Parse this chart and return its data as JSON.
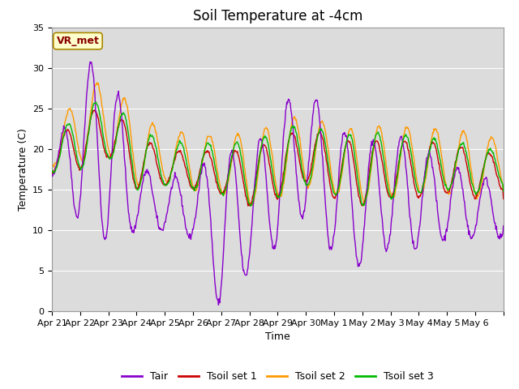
{
  "title": "Soil Temperature at -4cm",
  "xlabel": "Time",
  "ylabel": "Temperature (C)",
  "ylim": [
    0,
    35
  ],
  "n_days": 16,
  "background_color": "#ffffff",
  "plot_bg_color": "#dcdcdc",
  "grid_color": "#ffffff",
  "line_colors": {
    "Tair": "#8800cc",
    "Tsoil_set1": "#cc0000",
    "Tsoil_set2": "#ff9900",
    "Tsoil_set3": "#00bb00"
  },
  "line_width": 1.0,
  "annotation_text": "VR_met",
  "annotation_box_color": "#ffffcc",
  "annotation_border_color": "#aa8800",
  "tick_labels": [
    "Apr 21",
    "Apr 22",
    "Apr 23",
    "Apr 24",
    "Apr 25",
    "Apr 26",
    "Apr 27",
    "Apr 28",
    "Apr 29",
    "Apr 30",
    "May 1",
    "May 2",
    "May 3",
    "May 4",
    "May 5",
    "May 6"
  ],
  "yticks": [
    0,
    5,
    10,
    15,
    20,
    25,
    30,
    35
  ],
  "legend_labels": [
    "Tair",
    "Tsoil set 1",
    "Tsoil set 2",
    "Tsoil set 3"
  ],
  "title_fontsize": 12,
  "axis_label_fontsize": 9,
  "tick_fontsize": 8,
  "legend_fontsize": 9,
  "tair_base": [
    17.0,
    20.5,
    20.0,
    14.0,
    13.0,
    13.0,
    10.0,
    12.0,
    16.5,
    20.0,
    15.0,
    13.0,
    15.0,
    14.0,
    13.5,
    13.0,
    12.0
  ],
  "tair_amp": [
    0.5,
    9.5,
    11.5,
    4.0,
    3.0,
    4.0,
    10.0,
    7.0,
    8.5,
    8.0,
    8.0,
    7.5,
    7.0,
    6.5,
    4.5,
    4.0,
    3.0
  ],
  "ts1_base": [
    18.5,
    21.0,
    22.0,
    18.5,
    17.5,
    17.5,
    17.0,
    16.5,
    17.5,
    19.5,
    17.5,
    17.0,
    17.5,
    17.5,
    17.5,
    17.0,
    17.0
  ],
  "ts1_amp": [
    1.5,
    3.5,
    3.0,
    3.5,
    2.0,
    2.5,
    2.5,
    3.5,
    3.5,
    3.5,
    3.5,
    4.0,
    3.5,
    3.5,
    3.0,
    3.0,
    2.0
  ],
  "ts2_base": [
    19.5,
    23.0,
    24.0,
    20.0,
    19.0,
    18.5,
    18.0,
    17.5,
    18.5,
    20.0,
    18.5,
    18.0,
    18.5,
    18.5,
    18.5,
    18.0,
    18.0
  ],
  "ts2_amp": [
    1.5,
    4.5,
    4.5,
    4.5,
    3.0,
    3.5,
    3.5,
    4.5,
    4.5,
    4.5,
    4.0,
    4.5,
    4.5,
    4.0,
    4.0,
    4.0,
    3.0
  ],
  "ts3_base": [
    18.5,
    21.5,
    22.5,
    19.0,
    18.0,
    18.0,
    17.5,
    17.0,
    18.0,
    19.5,
    18.0,
    17.5,
    18.0,
    18.0,
    18.0,
    17.5,
    17.5
  ],
  "ts3_amp": [
    1.5,
    4.0,
    3.5,
    4.0,
    2.5,
    3.0,
    3.0,
    4.0,
    4.0,
    4.0,
    3.5,
    4.5,
    4.0,
    3.5,
    3.0,
    3.0,
    2.0
  ],
  "tair_phase": 3,
  "ts1_phase": 6,
  "ts2_phase": 8,
  "ts3_phase": 7
}
